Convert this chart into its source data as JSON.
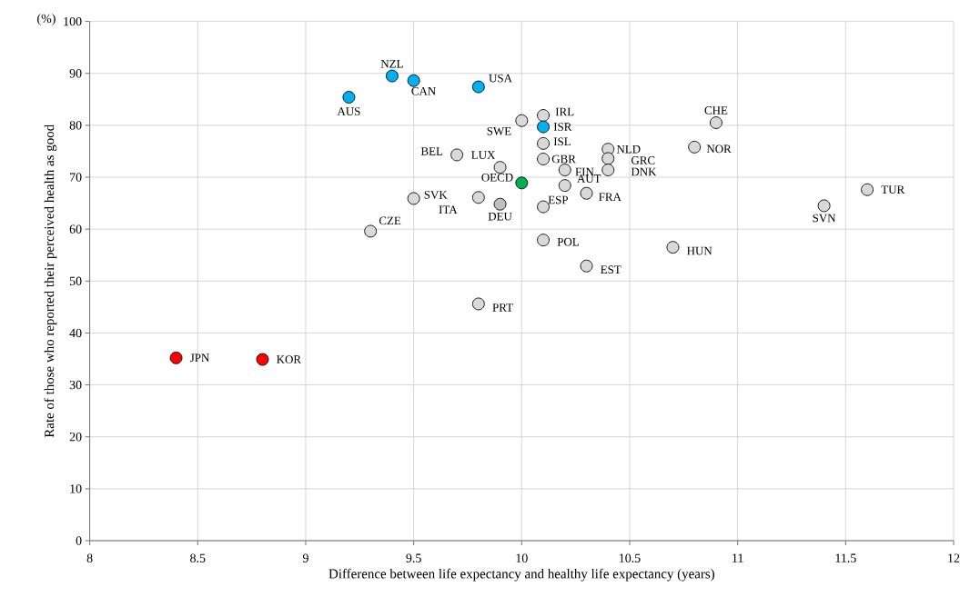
{
  "chart_data": {
    "type": "scatter",
    "xlabel": "Difference between life expectancy and healthy life expectancy (years)",
    "ylabel": "Rate of those who reported their perceived health as good",
    "annotations": [
      "(%)"
    ],
    "xlim": [
      8,
      12
    ],
    "ylim": [
      0,
      100
    ],
    "xticks": [
      8,
      8.5,
      9,
      9.5,
      10,
      10.5,
      11,
      11.5,
      12
    ],
    "yticks": [
      0,
      10,
      20,
      30,
      40,
      50,
      60,
      70,
      80,
      90,
      100
    ],
    "grid": true,
    "marker": "circle",
    "x": [
      9.2,
      9.4,
      9.5,
      9.8,
      9.7,
      9.9,
      9.5,
      9.3,
      9.8,
      9.9,
      10.0,
      10.1,
      10.1,
      10.1,
      10.1,
      10.2,
      10.2,
      10.3,
      10.1,
      10.1,
      10.4,
      10.4,
      10.4,
      10.9,
      10.8,
      11.6,
      11.4,
      10.7,
      10.3,
      9.8,
      8.4,
      8.8,
      10.0
    ],
    "values": [
      85.4,
      89.5,
      88.6,
      87.4,
      74.3,
      71.9,
      65.9,
      59.6,
      66.1,
      64.8,
      80.9,
      81.9,
      79.7,
      76.5,
      73.5,
      71.4,
      68.4,
      66.9,
      64.3,
      57.9,
      75.4,
      73.6,
      71.4,
      80.5,
      75.8,
      67.6,
      64.5,
      56.5,
      52.9,
      45.6,
      35.2,
      34.9,
      68.9
    ],
    "colors": [
      "#00b0f0",
      "#00b0f0",
      "#00b0f0",
      "#00b0f0",
      "#d9d9d9",
      "#d9d9d9",
      "#d9d9d9",
      "#d9d9d9",
      "#d9d9d9",
      "#bfbfbf",
      "#d9d9d9",
      "#d9d9d9",
      "#00b0f0",
      "#d9d9d9",
      "#d9d9d9",
      "#d9d9d9",
      "#d9d9d9",
      "#d9d9d9",
      "#d9d9d9",
      "#d9d9d9",
      "#d9d9d9",
      "#d9d9d9",
      "#d9d9d9",
      "#d9d9d9",
      "#d9d9d9",
      "#d9d9d9",
      "#d9d9d9",
      "#d9d9d9",
      "#d9d9d9",
      "#d9d9d9",
      "#ff0000",
      "#ff0000",
      "#00b050"
    ],
    "value_labels": [
      "AUS",
      "NZL",
      "CAN",
      "USA",
      "BEL",
      "LUX",
      "SVK",
      "CZE",
      "ITA",
      "DEU",
      "SWE",
      "IRL",
      "ISR",
      "ISL",
      "GBR",
      "FIN",
      "AUT",
      "FRA",
      "ESP",
      "POL",
      "NLD",
      "GRC",
      "DNK",
      "CHE",
      "NOR",
      "TUR",
      "SVN",
      "HUN",
      "EST",
      "PRT",
      "JPN",
      "KOR",
      "OECD"
    ]
  }
}
